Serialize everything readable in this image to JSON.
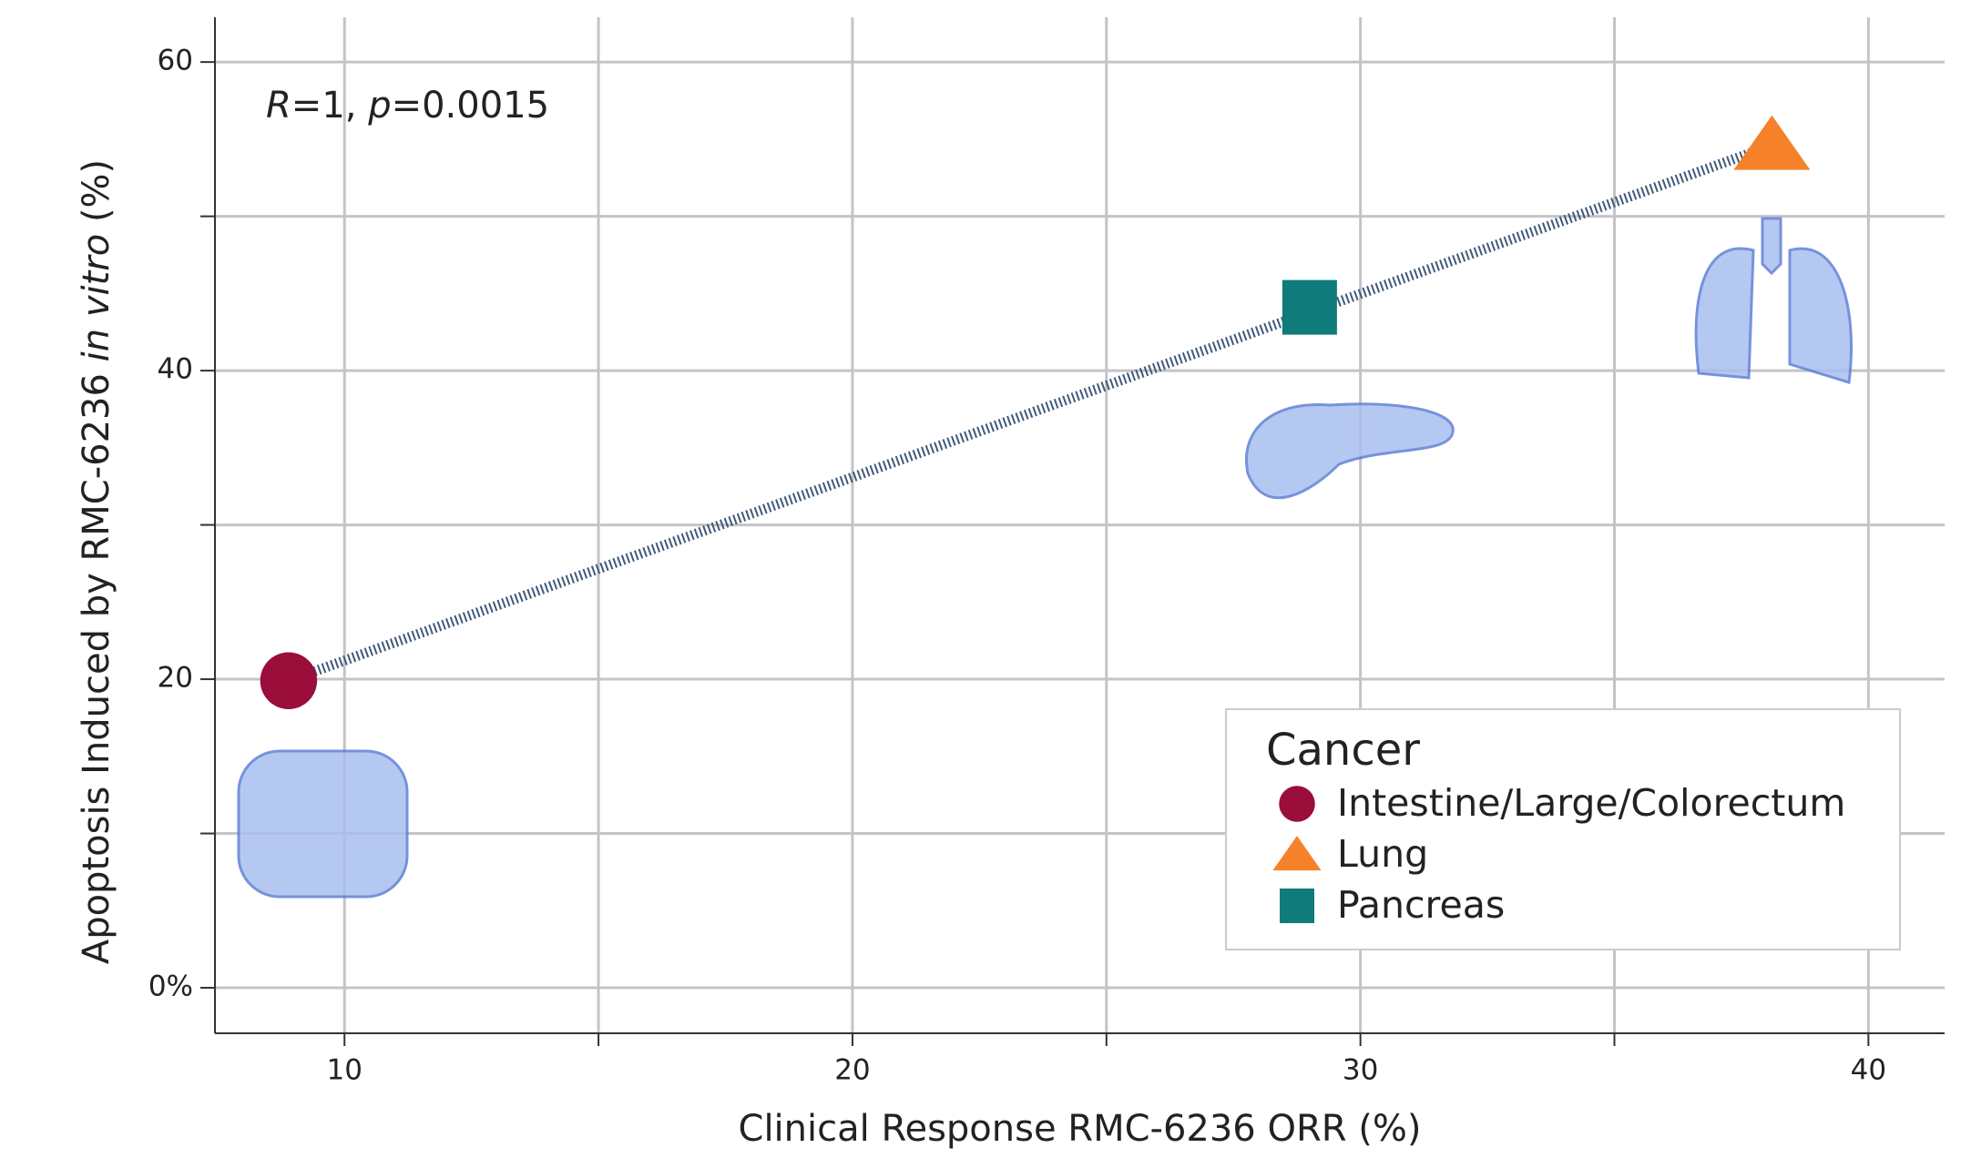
{
  "chart_data": {
    "type": "scatter",
    "x_label": "Clinical Response RMC-6236 ORR (%)",
    "y_label_parts": [
      "Apoptosis Induced by RMC-6236 ",
      "in vitro",
      " (%)"
    ],
    "annotation_parts": [
      "R",
      "=1, ",
      "p",
      "=0.0015"
    ],
    "xlim": [
      7.45,
      41.5
    ],
    "ylim": [
      -2.95,
      62.9
    ],
    "xticks": [
      10,
      20,
      30,
      40
    ],
    "x_minor_ticks": [
      15,
      25,
      35
    ],
    "yticks": [
      {
        "value": 0,
        "label": "0%"
      },
      20,
      40,
      60
    ],
    "y_minor_ticks": [
      10,
      30,
      50
    ],
    "grid": true,
    "legend_title": "Cancer",
    "legend_position": "lower right",
    "series": [
      {
        "name": "Intestine/Large/Colorectum",
        "color": "#9b0d3a",
        "marker": "circle",
        "x": [
          8.9
        ],
        "values": [
          19.9
        ]
      },
      {
        "name": "Lung",
        "color": "#f5822b",
        "marker": "triangle",
        "x": [
          38.1
        ],
        "values": [
          54.6
        ]
      },
      {
        "name": "Pancreas",
        "color": "#0f7b7b",
        "marker": "square",
        "x": [
          29.0
        ],
        "values": [
          44.1
        ]
      }
    ],
    "trend_line": {
      "color": "#3f5a7a",
      "x": [
        8.9,
        38.1
      ],
      "values": [
        19.9,
        54.6
      ]
    }
  }
}
